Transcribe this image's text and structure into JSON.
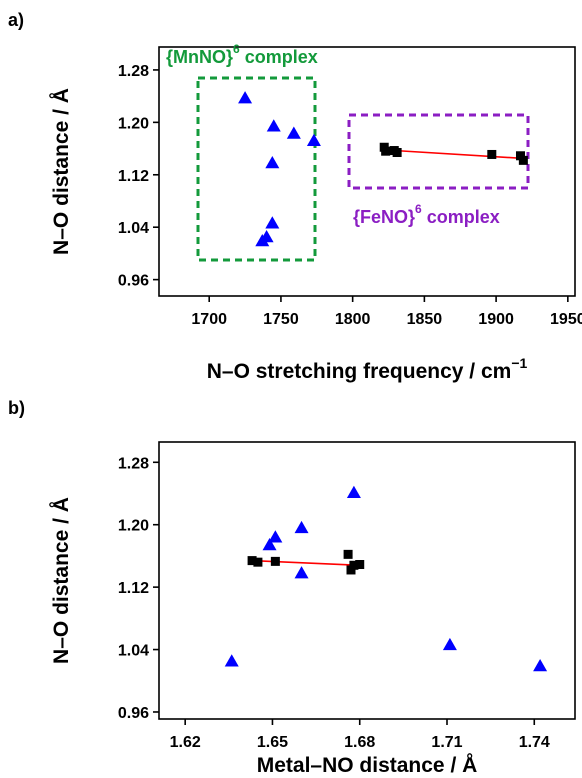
{
  "chart_data": [
    {
      "panel": "a)",
      "type": "scatter",
      "xlabel": "N–O stretching frequency / cm",
      "xlabel_sup": "−1",
      "ylabel": "N–O distance / Å",
      "xlim": [
        1665,
        1955
      ],
      "ylim": [
        0.935,
        1.315
      ],
      "xticks": [
        "1700",
        "1750",
        "1800",
        "1850",
        "1900",
        "1950"
      ],
      "yticks": [
        "0.96",
        "1.04",
        "1.12",
        "1.20",
        "1.28"
      ],
      "grid": false,
      "series": [
        {
          "marker": "triangle",
          "color": "#0000ff",
          "points": [
            [
              1725,
              1.237
            ],
            [
              1745,
              1.194
            ],
            [
              1759,
              1.183
            ],
            [
              1773,
              1.172
            ],
            [
              1744,
              1.138
            ],
            [
              1744,
              1.046
            ],
            [
              1740,
              1.025
            ],
            [
              1737,
              1.019
            ]
          ]
        },
        {
          "marker": "square",
          "color": "#000000",
          "points": [
            [
              1822,
              1.162
            ],
            [
              1823,
              1.156
            ],
            [
              1829,
              1.157
            ],
            [
              1831,
              1.154
            ],
            [
              1897,
              1.151
            ],
            [
              1917,
              1.149
            ],
            [
              1919,
              1.142
            ]
          ]
        }
      ],
      "fit_line": {
        "color": "#ff0000",
        "x": [
          1822,
          1919
        ],
        "y": [
          1.158,
          1.145
        ]
      },
      "annotations": [
        {
          "text": "{MnNO}",
          "sup": "6",
          "text2": " complex",
          "color": "#139a3b",
          "box_color": "#139a3b"
        },
        {
          "text": "{FeNO}",
          "sup": "6",
          "text2": " complex",
          "color": "#8b1ec3",
          "box_color": "#8b1ec3"
        }
      ]
    },
    {
      "panel": "b)",
      "type": "scatter",
      "xlabel": "Metal–NO distance / Å",
      "ylabel": "N–O distance / Å",
      "xlim": [
        1.611,
        1.754
      ],
      "ylim": [
        0.951,
        1.306
      ],
      "xticks": [
        "1.62",
        "1.65",
        "1.68",
        "1.71",
        "1.74"
      ],
      "yticks": [
        "0.96",
        "1.04",
        "1.12",
        "1.20",
        "1.28"
      ],
      "grid": false,
      "series": [
        {
          "marker": "triangle",
          "color": "#0000ff",
          "points": [
            [
              1.636,
              1.025
            ],
            [
              1.649,
              1.174
            ],
            [
              1.651,
              1.184
            ],
            [
              1.66,
              1.196
            ],
            [
              1.66,
              1.138
            ],
            [
              1.678,
              1.241
            ],
            [
              1.711,
              1.046
            ],
            [
              1.742,
              1.019
            ]
          ]
        },
        {
          "marker": "square",
          "color": "#000000",
          "points": [
            [
              1.643,
              1.154
            ],
            [
              1.645,
              1.152
            ],
            [
              1.651,
              1.153
            ],
            [
              1.676,
              1.162
            ],
            [
              1.677,
              1.142
            ],
            [
              1.678,
              1.148
            ],
            [
              1.68,
              1.149
            ]
          ]
        }
      ],
      "fit_line": {
        "color": "#ff0000",
        "x": [
          1.643,
          1.68
        ],
        "y": [
          1.154,
          1.148
        ]
      }
    }
  ]
}
